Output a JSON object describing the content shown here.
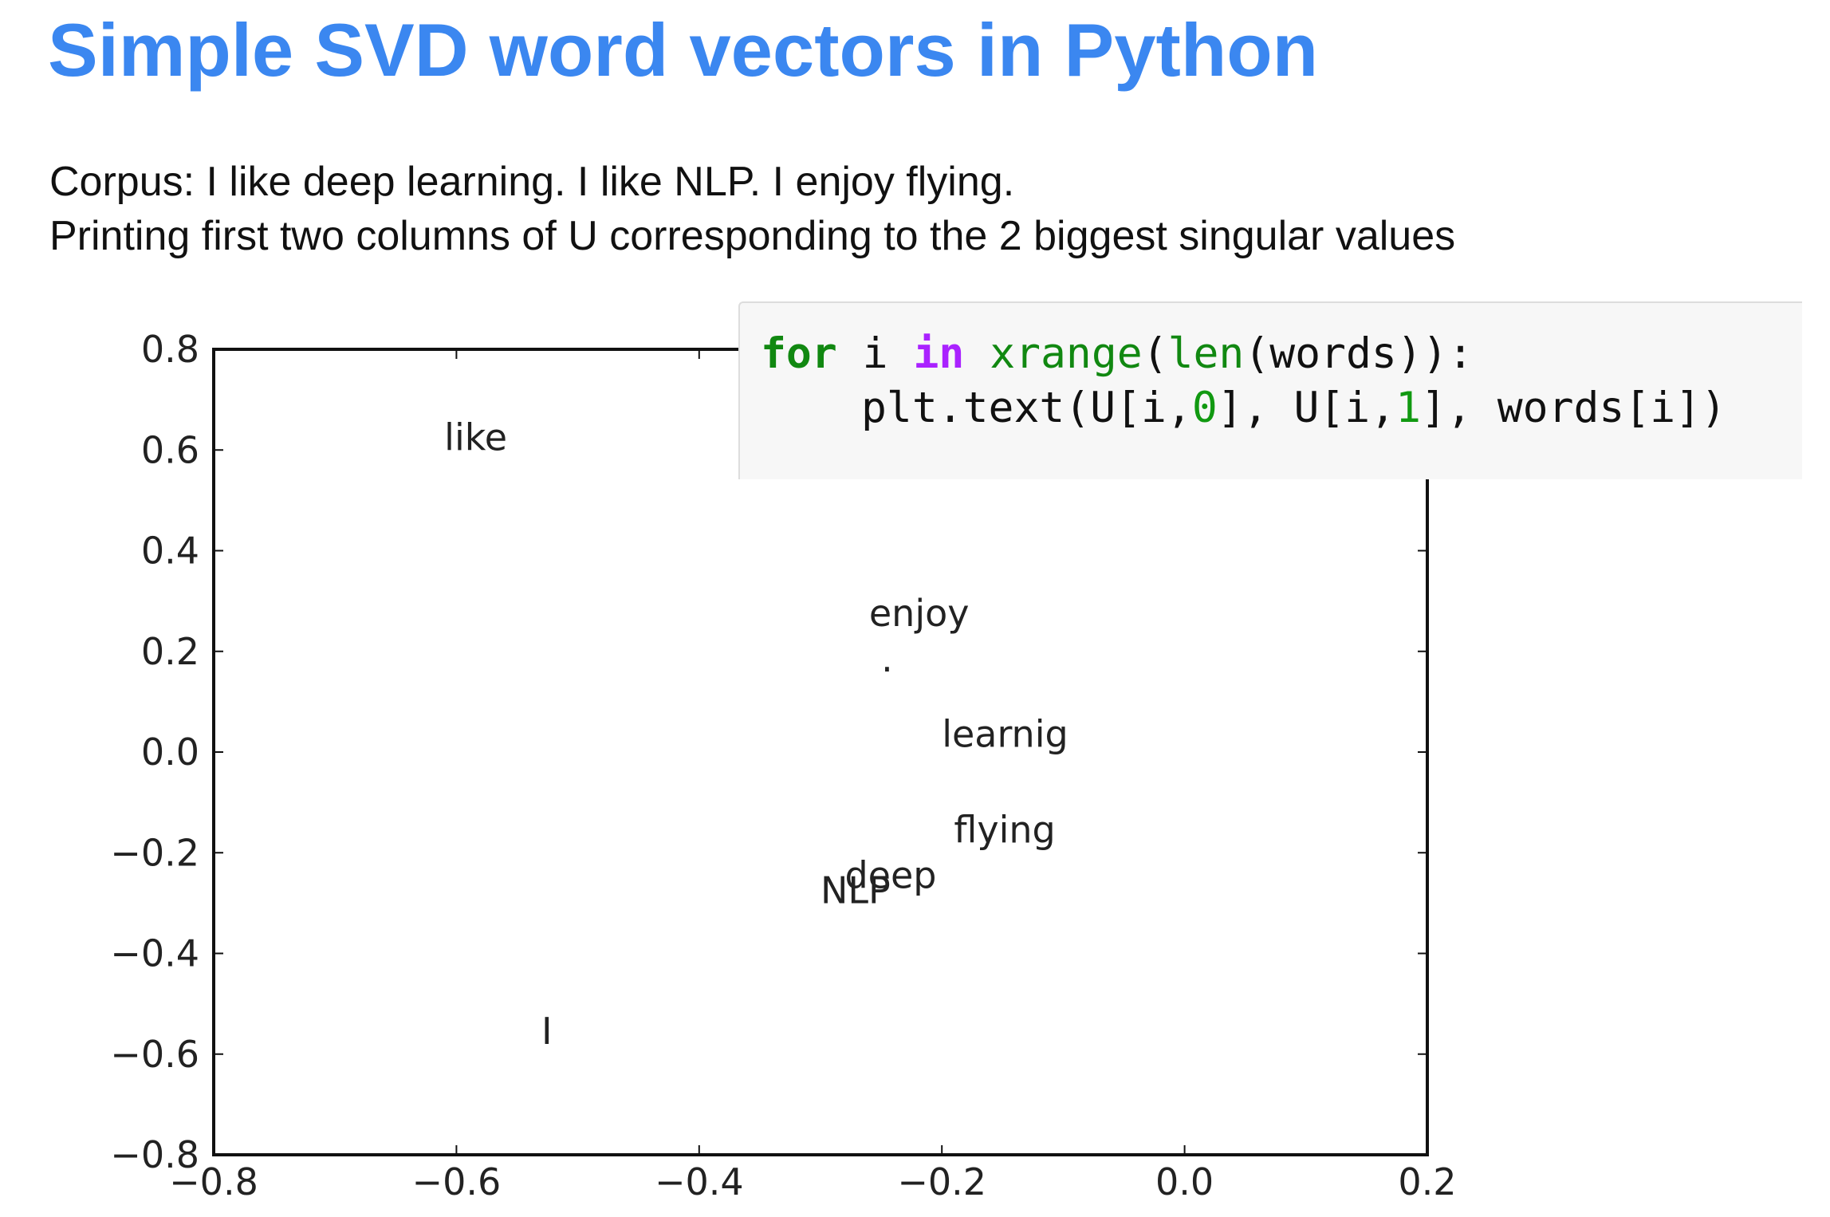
{
  "title": "Simple SVD word vectors in Python",
  "subtitle_lines": [
    "Corpus: I like deep learning. I like NLP. I enjoy flying.",
    "Printing first two columns of U corresponding to the 2 biggest singular values"
  ],
  "code": {
    "line1": {
      "kw_for": "for",
      "var": " i ",
      "kw_in": "in",
      "fn_xrange": " xrange",
      "p1": "(",
      "fn_len": "len",
      "p2": "(words)):"
    },
    "line2": {
      "a": "plt.text(U[i,",
      "n0": "0",
      "b": "], U[i,",
      "n1": "1",
      "c": "], words[i])"
    }
  },
  "chart_data": {
    "type": "scatter",
    "xlim": [
      -0.8,
      0.2
    ],
    "ylim": [
      -0.8,
      0.8
    ],
    "xticks": [
      -0.8,
      -0.6,
      -0.4,
      -0.2,
      0.0,
      0.2
    ],
    "yticks": [
      -0.8,
      -0.6,
      -0.4,
      -0.2,
      0.0,
      0.2,
      0.4,
      0.6,
      0.8
    ],
    "x_tick_labels": [
      "−0.8",
      "−0.6",
      "−0.4",
      "−0.2",
      "0.0",
      "0.2"
    ],
    "y_tick_labels": [
      "−0.8",
      "−0.6",
      "−0.4",
      "−0.2",
      "0.0",
      "0.2",
      "0.4",
      "0.6",
      "0.8"
    ],
    "grid": false,
    "points": [
      {
        "label": "like",
        "x": -0.61,
        "y": 0.6
      },
      {
        "label": "enjoy",
        "x": -0.26,
        "y": 0.25
      },
      {
        "label": "learnig",
        "x": -0.2,
        "y": 0.01
      },
      {
        "label": "flying",
        "x": -0.19,
        "y": -0.18
      },
      {
        "label": "deep",
        "x": -0.28,
        "y": -0.27
      },
      {
        "label": "NLP",
        "x": -0.3,
        "y": -0.3
      },
      {
        "label": "I",
        "x": -0.53,
        "y": -0.58
      },
      {
        "label": ".",
        "x": -0.25,
        "y": 0.16
      }
    ]
  }
}
